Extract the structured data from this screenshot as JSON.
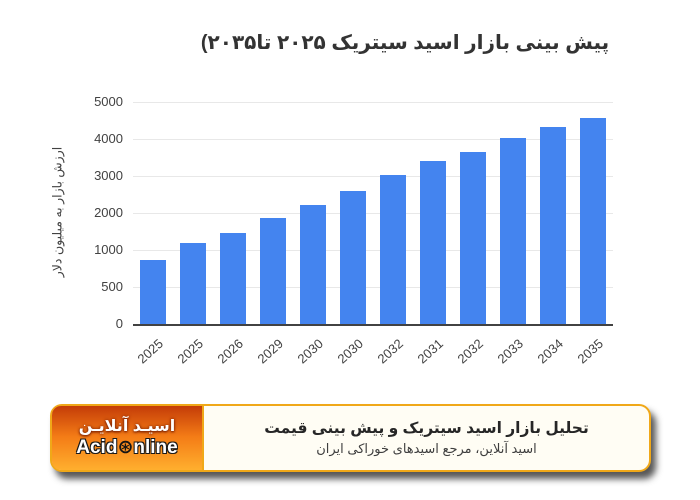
{
  "page": {
    "title": "پیش بینی بازار اسید سیتریک ۲۰۲۵ تا۲۰۳۵)"
  },
  "chart_data": {
    "type": "bar",
    "title": "پیش بینی بازار اسید سیتریک ۲۰۲۵ تا۲۰۳۵)",
    "categories": [
      "2025",
      "2025",
      "2026",
      "2029",
      "2030",
      "2030",
      "2032",
      "2031",
      "2032",
      "2033",
      "2034",
      "2035"
    ],
    "values": [
      870,
      1180,
      1470,
      1870,
      2230,
      2600,
      3020,
      3410,
      3660,
      4030,
      4330,
      4570
    ],
    "ylabel": "ارزش بازار به میلیون دلار",
    "xlabel": "",
    "yticks": [
      0,
      500,
      1000,
      2000,
      3000,
      4000,
      5000
    ],
    "ylim": [
      0,
      5000
    ],
    "grid": true,
    "legend": "none",
    "bar_color": "#4484ef",
    "axis_color": "#424242",
    "gridline_color": "#e8e8e8"
  },
  "footer": {
    "headline": "تحلیل بازار اسید سیتریک و پیش بینی قیمت",
    "subline": "اسید آنلاین، مرجع اسیدهای خوراکی ایران",
    "logo": {
      "brand_persian": "اسیـد آنلایـن",
      "brand_latin_prefix": "Acid",
      "wheel_icon": "⊛",
      "brand_latin_suffix": "nline",
      "border_color": "#f0a818",
      "gradient_top": "#c43c08",
      "gradient_mid": "#f47c16",
      "gradient_bottom": "#ffaf2e"
    }
  }
}
